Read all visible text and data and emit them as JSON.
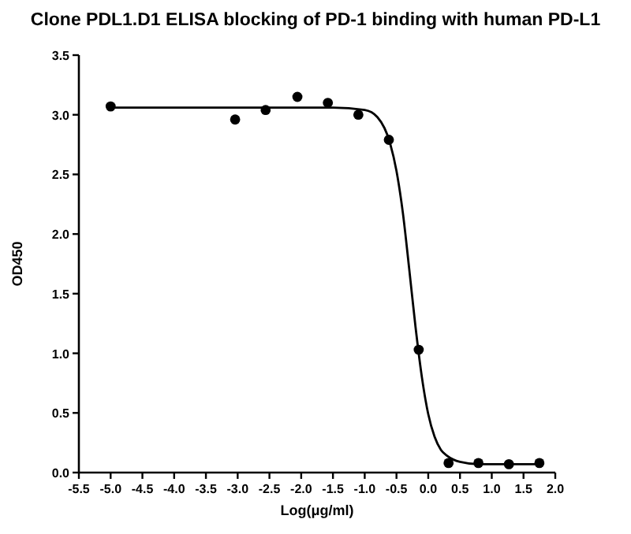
{
  "chart_data": {
    "type": "scatter",
    "title": "Clone PDL1.D1 ELISA blocking of PD-1 binding with human PD-L1",
    "xlabel": "Log(μg/ml)",
    "ylabel": "OD450",
    "xlim": [
      -5.5,
      2.0
    ],
    "xticks": [
      -5.5,
      {
        "value": -5,
        "label": "-5.0"
      },
      -4.5,
      {
        "value": -4,
        "label": "-4.0"
      },
      -3.5,
      {
        "value": -3,
        "label": "-3.0"
      },
      -2.5,
      {
        "value": -2,
        "label": "-2.0"
      },
      -1.5,
      {
        "value": -1,
        "label": "-1.0"
      },
      -0.5,
      {
        "value": 0,
        "label": "0.0"
      },
      0.5,
      {
        "value": 1,
        "label": "1.0"
      },
      1.5,
      {
        "value": 2,
        "label": "2.0"
      }
    ],
    "ylim": [
      0,
      3.5
    ],
    "yticks": [
      {
        "value": 0,
        "label": "0.0"
      },
      0.5,
      {
        "value": 1,
        "label": "1.0"
      },
      1.5,
      {
        "value": 2,
        "label": "2.0"
      },
      2.5,
      {
        "value": 3,
        "label": "3.0"
      },
      3.5
    ],
    "grid": false,
    "series": [
      {
        "marker": "circle",
        "color": "#000000",
        "x": [
          -5.0,
          -3.04,
          -2.56,
          -2.06,
          -1.58,
          -1.1,
          -0.62,
          -0.15,
          0.32,
          0.79,
          1.27,
          1.75
        ],
        "values": [
          3.07,
          2.96,
          3.04,
          3.15,
          3.1,
          3.0,
          2.79,
          1.03,
          0.08,
          0.08,
          0.07,
          0.08
        ]
      },
      {
        "type": "line",
        "marker": "none",
        "line_style": "solid",
        "color": "#000000",
        "x": [
          -5.0,
          -3.0,
          -1.5,
          -1.0,
          -0.8,
          -0.6,
          -0.5,
          -0.4,
          -0.3,
          -0.2,
          -0.1,
          0.0,
          0.1,
          0.2,
          0.3,
          0.5,
          0.8,
          1.2,
          1.75
        ],
        "values": [
          3.06,
          3.06,
          3.06,
          3.04,
          2.98,
          2.76,
          2.53,
          2.18,
          1.71,
          1.22,
          0.8,
          0.49,
          0.3,
          0.19,
          0.14,
          0.09,
          0.07,
          0.07,
          0.07
        ]
      }
    ]
  }
}
